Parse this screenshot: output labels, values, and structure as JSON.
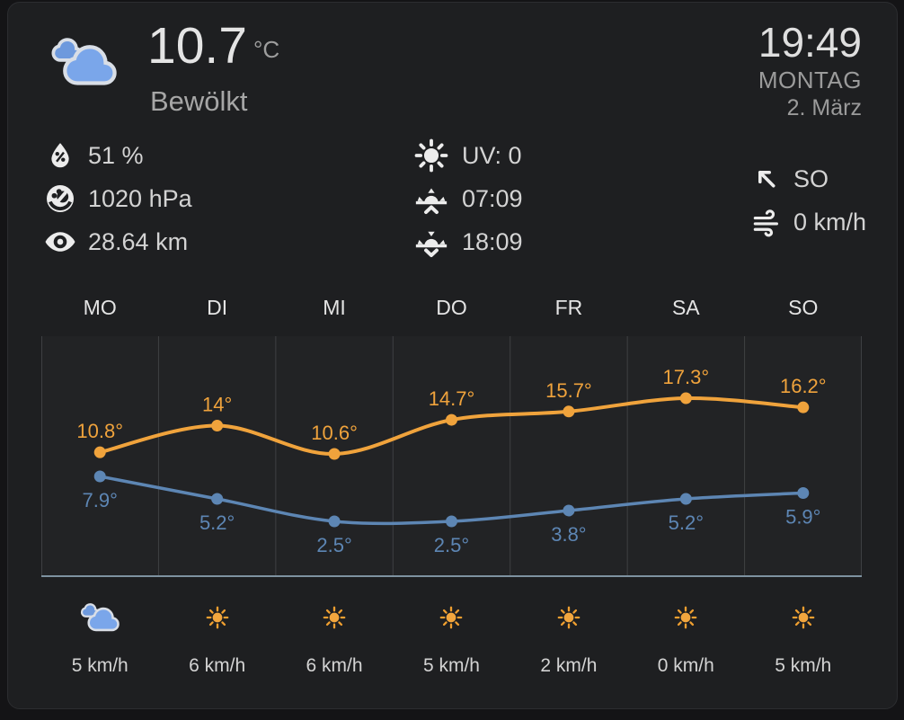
{
  "current": {
    "temperature": "10.7",
    "temperature_unit": "°C",
    "condition": "Bewölkt",
    "condition_icon": "cloudy"
  },
  "clock": {
    "time": "19:49",
    "weekday": "MONTAG",
    "date": "2. März"
  },
  "attributes": {
    "humidity": "51 %",
    "pressure": "1020 hPa",
    "visibility": "28.64 km",
    "uv": "UV: 0",
    "sunrise": "07:09",
    "sunset": "18:09",
    "wind_bearing": "SO",
    "wind_speed": "0 km/h"
  },
  "forecast": [
    {
      "day": "MO",
      "condition": "cloudy",
      "wind_speed": "5 km/h"
    },
    {
      "day": "DI",
      "condition": "sunny",
      "wind_speed": "6 km/h"
    },
    {
      "day": "MI",
      "condition": "sunny",
      "wind_speed": "6 km/h"
    },
    {
      "day": "DO",
      "condition": "sunny",
      "wind_speed": "5 km/h"
    },
    {
      "day": "FR",
      "condition": "sunny",
      "wind_speed": "2 km/h"
    },
    {
      "day": "SA",
      "condition": "sunny",
      "wind_speed": "0 km/h"
    },
    {
      "day": "SO",
      "condition": "sunny",
      "wind_speed": "5 km/h"
    }
  ],
  "chart_data": {
    "type": "line",
    "x": [
      "MO",
      "DI",
      "MI",
      "DO",
      "FR",
      "SA",
      "SO"
    ],
    "series": [
      {
        "name": "high",
        "color": "#f0a33c",
        "values": [
          10.8,
          14,
          10.6,
          14.7,
          15.7,
          17.3,
          16.2
        ],
        "labels": [
          "10.8°",
          "14°",
          "10.6°",
          "14.7°",
          "15.7°",
          "17.3°",
          "16.2°"
        ],
        "label_position": "above"
      },
      {
        "name": "low",
        "color": "#5d86b4",
        "values": [
          7.9,
          5.2,
          2.5,
          2.5,
          3.8,
          5.2,
          5.9
        ],
        "labels": [
          "7.9°",
          "5.2°",
          "2.5°",
          "2.5°",
          "3.8°",
          "5.2°",
          "5.9°"
        ],
        "label_position": "below"
      }
    ],
    "title": "",
    "xlabel": "",
    "ylabel": "",
    "ylim": [
      -4,
      25
    ],
    "grid": "vertical-only",
    "legend": "none",
    "point_labels": true
  },
  "colors": {
    "page_bg": "#141416",
    "card_bg": "#1e1f21",
    "grid": "#3e4043",
    "axis_line": "#9cb8c9",
    "high": "#f0a33c",
    "low": "#5d86b4",
    "sun_fill": "#f2a63e",
    "sun_ray": "#ef9f30",
    "cloud_front": "#7aa6ea",
    "cloud_back": "#6d99dd",
    "cloud_stroke": "#d9dee6"
  }
}
